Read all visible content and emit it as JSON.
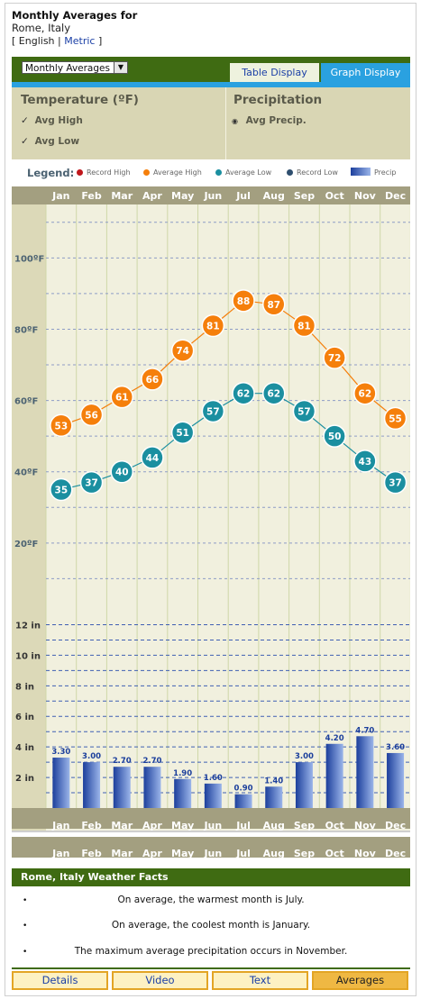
{
  "header": {
    "title": "Monthly Averages for",
    "location": "Rome, Italy",
    "units_open": "[",
    "unit_english": "English",
    "units_sep": "|",
    "unit_metric": "Metric",
    "units_close": "]"
  },
  "view_select": {
    "value": "Monthly Averages"
  },
  "display_tabs": {
    "table": "Table Display",
    "graph": "Graph Display"
  },
  "options": {
    "temperature_title": "Temperature  (ºF)",
    "avg_high_label": "Avg High",
    "avg_low_label": "Avg Low",
    "precip_title": "Precipitation",
    "avg_precip_label": "Avg Precip."
  },
  "legend": {
    "title": "Legend:",
    "record_high": "Record High",
    "average_high": "Average High",
    "average_low": "Average Low",
    "record_low": "Record Low",
    "precip": "Precip"
  },
  "colors": {
    "record_high": "#c0171c",
    "average_high": "#f57f0b",
    "average_low": "#1b8fa0",
    "record_low": "#2f4f6f",
    "precip_dark": "#1c3f9c",
    "precip_light": "#9bb5ea",
    "header_green": "#3f6b12",
    "tab_blue": "#2aa1e0"
  },
  "chart_data": [
    {
      "type": "line",
      "categories": [
        "Jan",
        "Feb",
        "Mar",
        "Apr",
        "May",
        "Jun",
        "Jul",
        "Aug",
        "Sep",
        "Oct",
        "Nov",
        "Dec"
      ],
      "series": [
        {
          "name": "Average High",
          "values": [
            53,
            56,
            61,
            66,
            74,
            81,
            88,
            87,
            81,
            72,
            62,
            55
          ]
        },
        {
          "name": "Average Low",
          "values": [
            35,
            37,
            40,
            44,
            51,
            57,
            62,
            62,
            57,
            50,
            43,
            37
          ]
        }
      ],
      "y_ticks": [
        "100ºF",
        "80ºF",
        "60ºF",
        "40ºF",
        "20ºF"
      ],
      "y_tick_values": [
        100,
        80,
        60,
        40,
        20
      ],
      "ylim": [
        0,
        115
      ],
      "grid": true
    },
    {
      "type": "bar",
      "categories": [
        "Jan",
        "Feb",
        "Mar",
        "Apr",
        "May",
        "Jun",
        "Jul",
        "Aug",
        "Sep",
        "Oct",
        "Nov",
        "Dec"
      ],
      "values": [
        3.3,
        3.0,
        2.7,
        2.7,
        1.9,
        1.6,
        0.9,
        1.4,
        3.0,
        4.2,
        4.7,
        3.6
      ],
      "value_labels": [
        "3.30",
        "3.00",
        "2.70",
        "2.70",
        "1.90",
        "1.60",
        "0.90",
        "1.40",
        "3.00",
        "4.20",
        "4.70",
        "3.60"
      ],
      "y_ticks": [
        "12 in",
        "10 in",
        "8 in",
        "6 in",
        "4 in",
        "2 in"
      ],
      "y_tick_values": [
        12,
        10,
        8,
        6,
        4,
        2
      ],
      "ylim": [
        0,
        12.5
      ],
      "grid": true
    }
  ],
  "facts": {
    "title": "Rome, Italy Weather Facts",
    "items": [
      "On average, the warmest month is July.",
      "On average, the coolest month is January.",
      "The maximum average precipitation occurs in November."
    ],
    "bullet": "•"
  },
  "bottom_tabs": {
    "details": "Details",
    "video": "Video",
    "text": "Text",
    "averages": "Averages"
  }
}
